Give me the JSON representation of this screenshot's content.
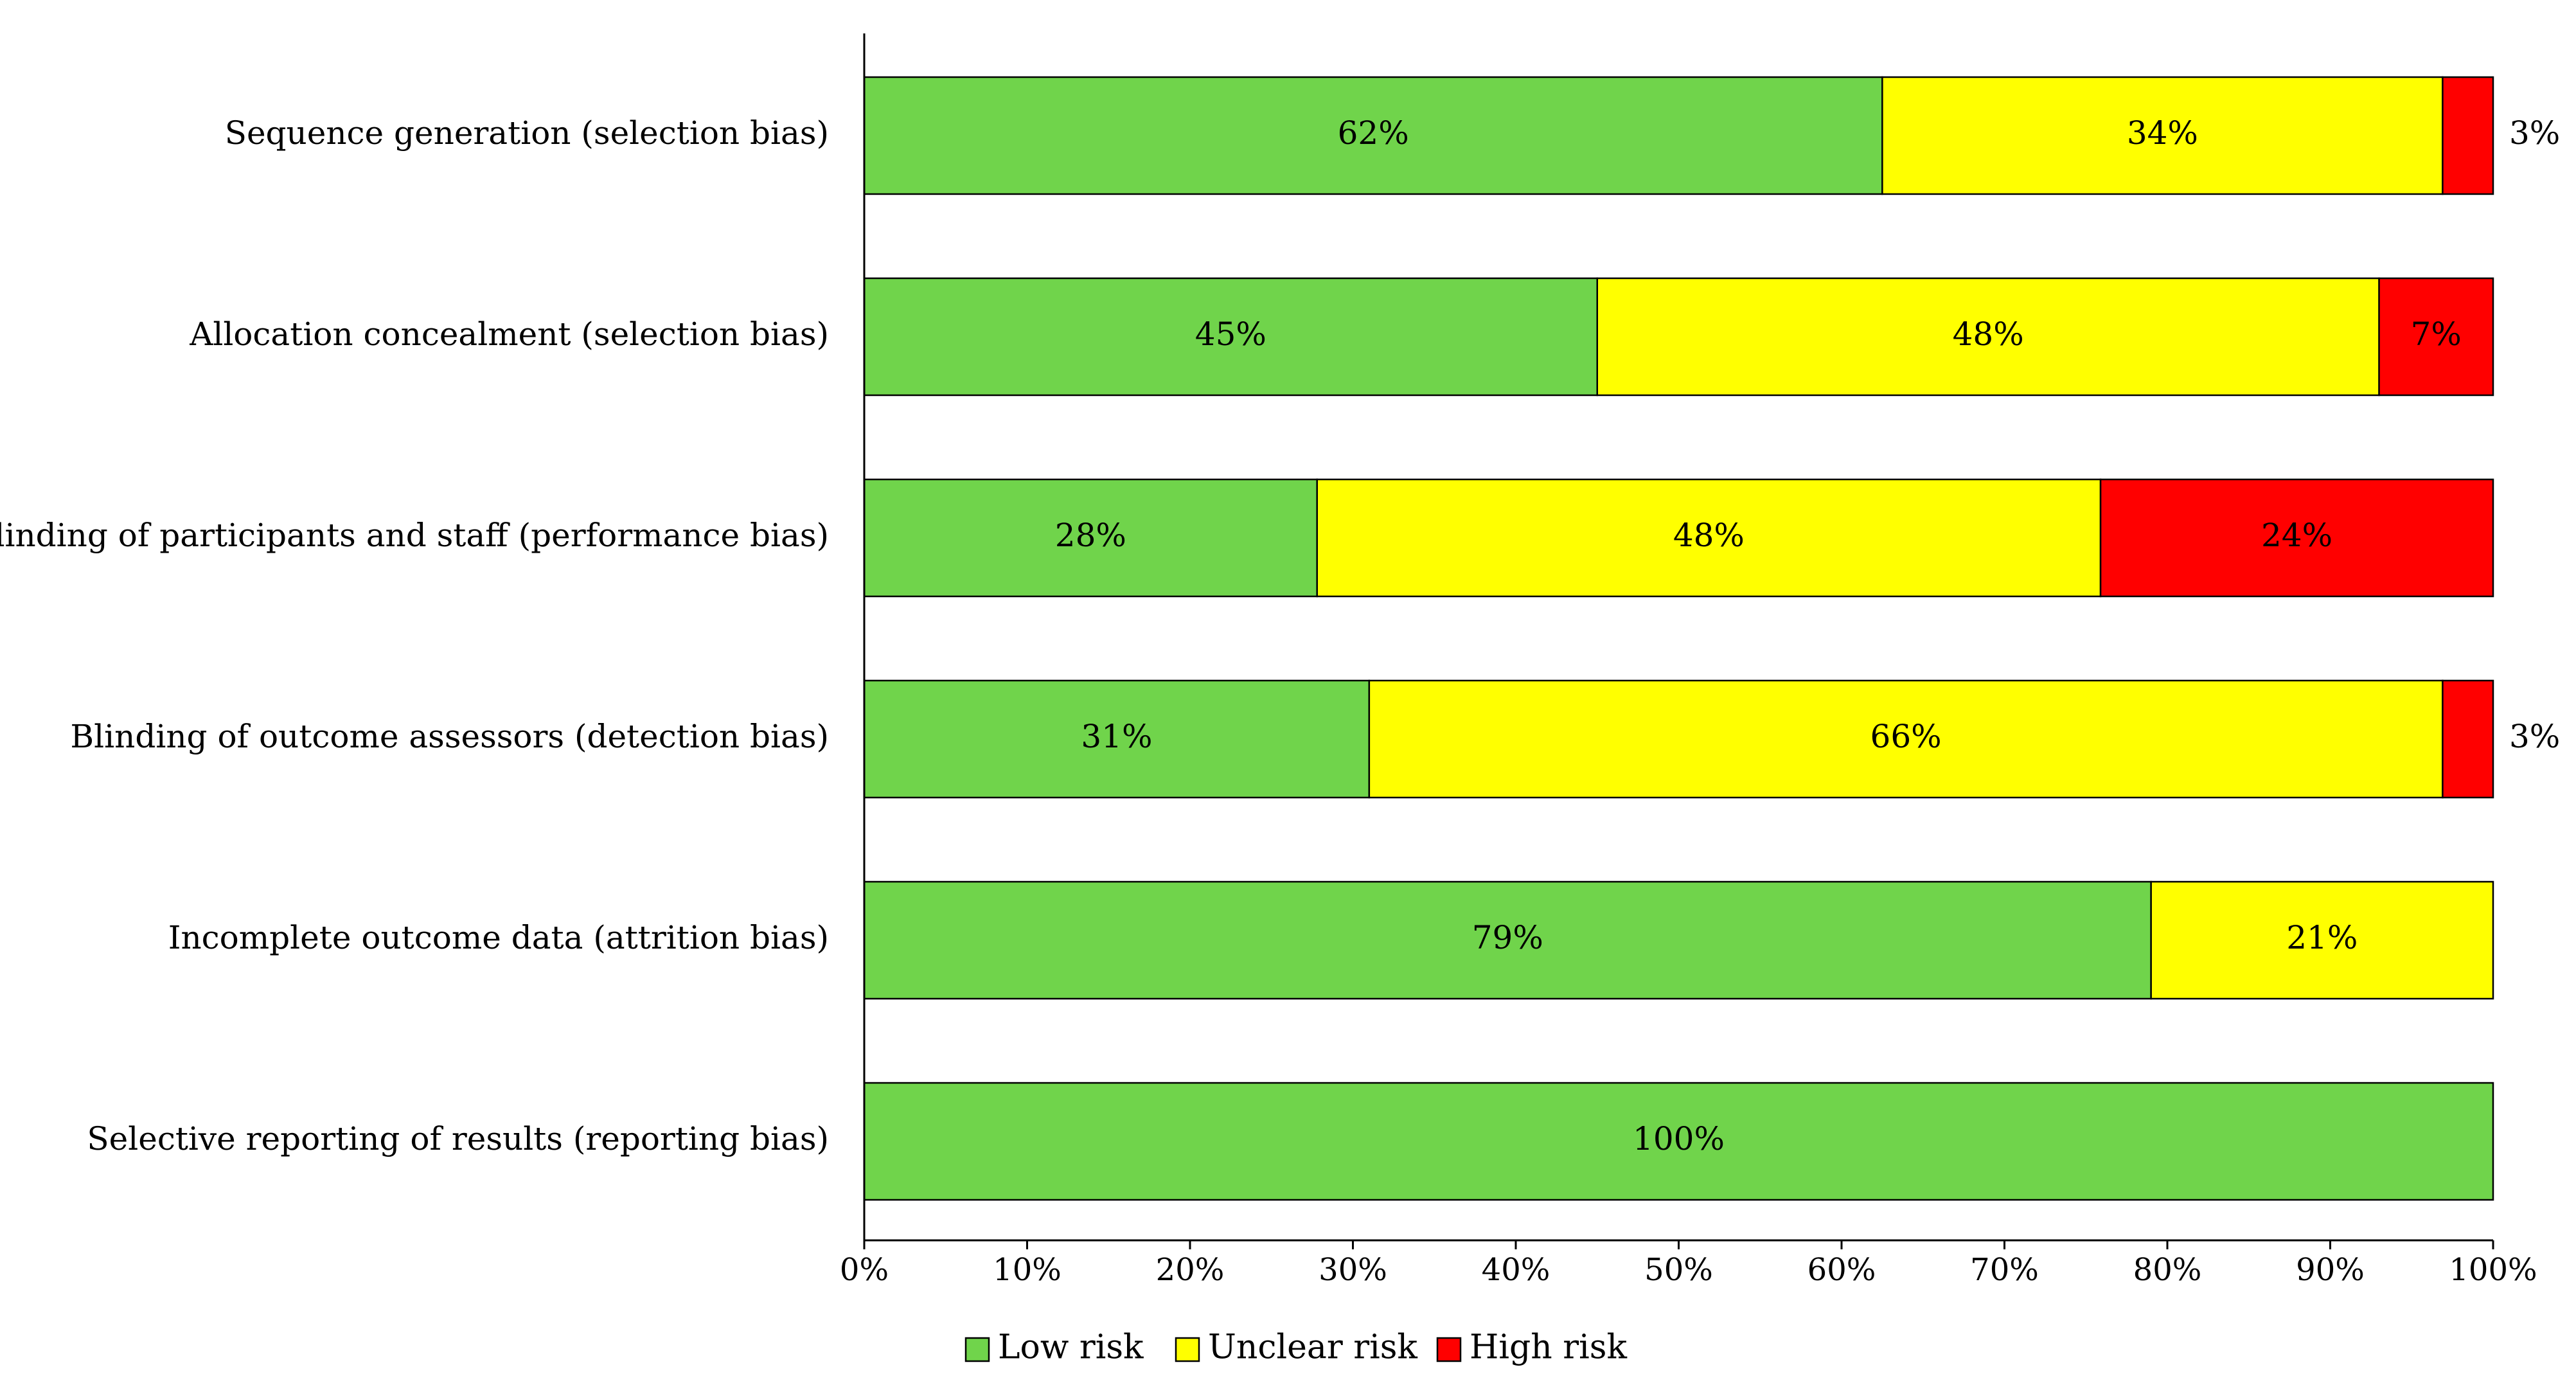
{
  "chart_data": {
    "type": "bar",
    "orientation": "horizontal",
    "stacked": true,
    "title": "",
    "xlabel": "",
    "ylabel": "",
    "xlim": [
      0,
      100
    ],
    "x_ticks": [
      "0%",
      "10%",
      "20%",
      "30%",
      "40%",
      "50%",
      "60%",
      "70%",
      "80%",
      "90%",
      "100%"
    ],
    "categories": [
      "Sequence generation (selection bias)",
      "Allocation concealment (selection bias)",
      "Blinding of participants and staff (performance bias)",
      "Blinding of outcome assessors (detection bias)",
      "Incomplete outcome data (attrition bias)",
      "Selective reporting of results (reporting bias)"
    ],
    "series": [
      {
        "name": "Low risk",
        "color": "#70D44B",
        "values": [
          62.5,
          45,
          27.8,
          31,
          79,
          100
        ],
        "labels": [
          "62%",
          "45%",
          "28%",
          "31%",
          "79%",
          "100%"
        ]
      },
      {
        "name": "Unclear risk",
        "color": "#FFFF00",
        "values": [
          34.4,
          48,
          48.1,
          65.9,
          21,
          0
        ],
        "labels": [
          "34%",
          "48%",
          "48%",
          "66%",
          "21%",
          ""
        ]
      },
      {
        "name": "High risk",
        "color": "#FF0000",
        "values": [
          3.1,
          7,
          24.1,
          3.1,
          0,
          0
        ],
        "labels": [
          "3%",
          "7%",
          "24%",
          "3%",
          "",
          ""
        ]
      }
    ],
    "legend": {
      "position": "bottom",
      "entries": [
        "Low risk",
        "Unclear risk",
        "High risk"
      ]
    }
  }
}
